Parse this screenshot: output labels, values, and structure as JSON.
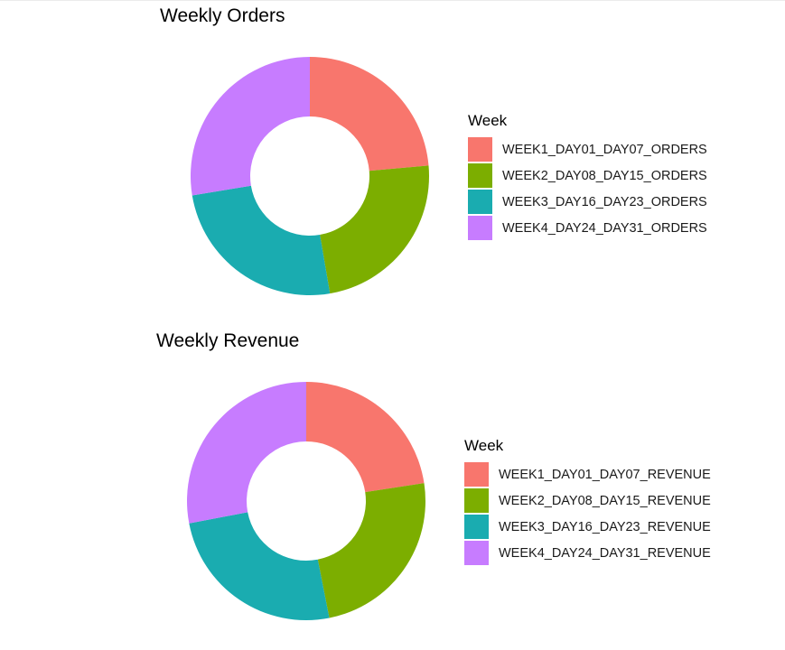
{
  "chart_data": [
    {
      "type": "pie",
      "subtype": "donut",
      "title": "Weekly Orders",
      "legend_title": "Week",
      "legend_position": "right",
      "categories": [
        "WEEK1_DAY01_DAY07_ORDERS",
        "WEEK2_DAY08_DAY15_ORDERS",
        "WEEK3_DAY16_DAY23_ORDERS",
        "WEEK4_DAY24_DAY31_ORDERS"
      ],
      "values": [
        23.6,
        23.7,
        25.1,
        27.6
      ],
      "value_unit": "percent (estimated from slice angles)",
      "colors": [
        "#F8766D",
        "#7CAE00",
        "#00BFC4",
        "#C77CFF"
      ]
    },
    {
      "type": "pie",
      "subtype": "donut",
      "title": "Weekly Revenue",
      "legend_title": "Week",
      "legend_position": "right",
      "categories": [
        "WEEK1_DAY01_DAY07_REVENUE",
        "WEEK2_DAY08_DAY15_REVENUE",
        "WEEK3_DAY16_DAY23_REVENUE",
        "WEEK4_DAY24_DAY31_REVENUE"
      ],
      "values": [
        22.6,
        24.3,
        25.1,
        28.0
      ],
      "value_unit": "percent (estimated from slice angles)",
      "colors": [
        "#F8766D",
        "#7CAE00",
        "#00BFC4",
        "#C77CFF"
      ]
    }
  ],
  "render_colors": [
    "#F8766D",
    "#7CAE00",
    "#1AACB0",
    "#C77CFF"
  ],
  "panels": [
    {
      "title": "Weekly Orders",
      "legend": {
        "title": "Week",
        "items": [
          {
            "label": "WEEK1_DAY01_DAY07_ORDERS"
          },
          {
            "label": "WEEK2_DAY08_DAY15_ORDERS"
          },
          {
            "label": "WEEK3_DAY16_DAY23_ORDERS"
          },
          {
            "label": "WEEK4_DAY24_DAY31_ORDERS"
          }
        ]
      }
    },
    {
      "title": "Weekly Revenue",
      "legend": {
        "title": "Week",
        "items": [
          {
            "label": "WEEK1_DAY01_DAY07_REVENUE"
          },
          {
            "label": "WEEK2_DAY08_DAY15_REVENUE"
          },
          {
            "label": "WEEK3_DAY16_DAY23_REVENUE"
          },
          {
            "label": "WEEK4_DAY24_DAY31_REVENUE"
          }
        ]
      }
    }
  ]
}
